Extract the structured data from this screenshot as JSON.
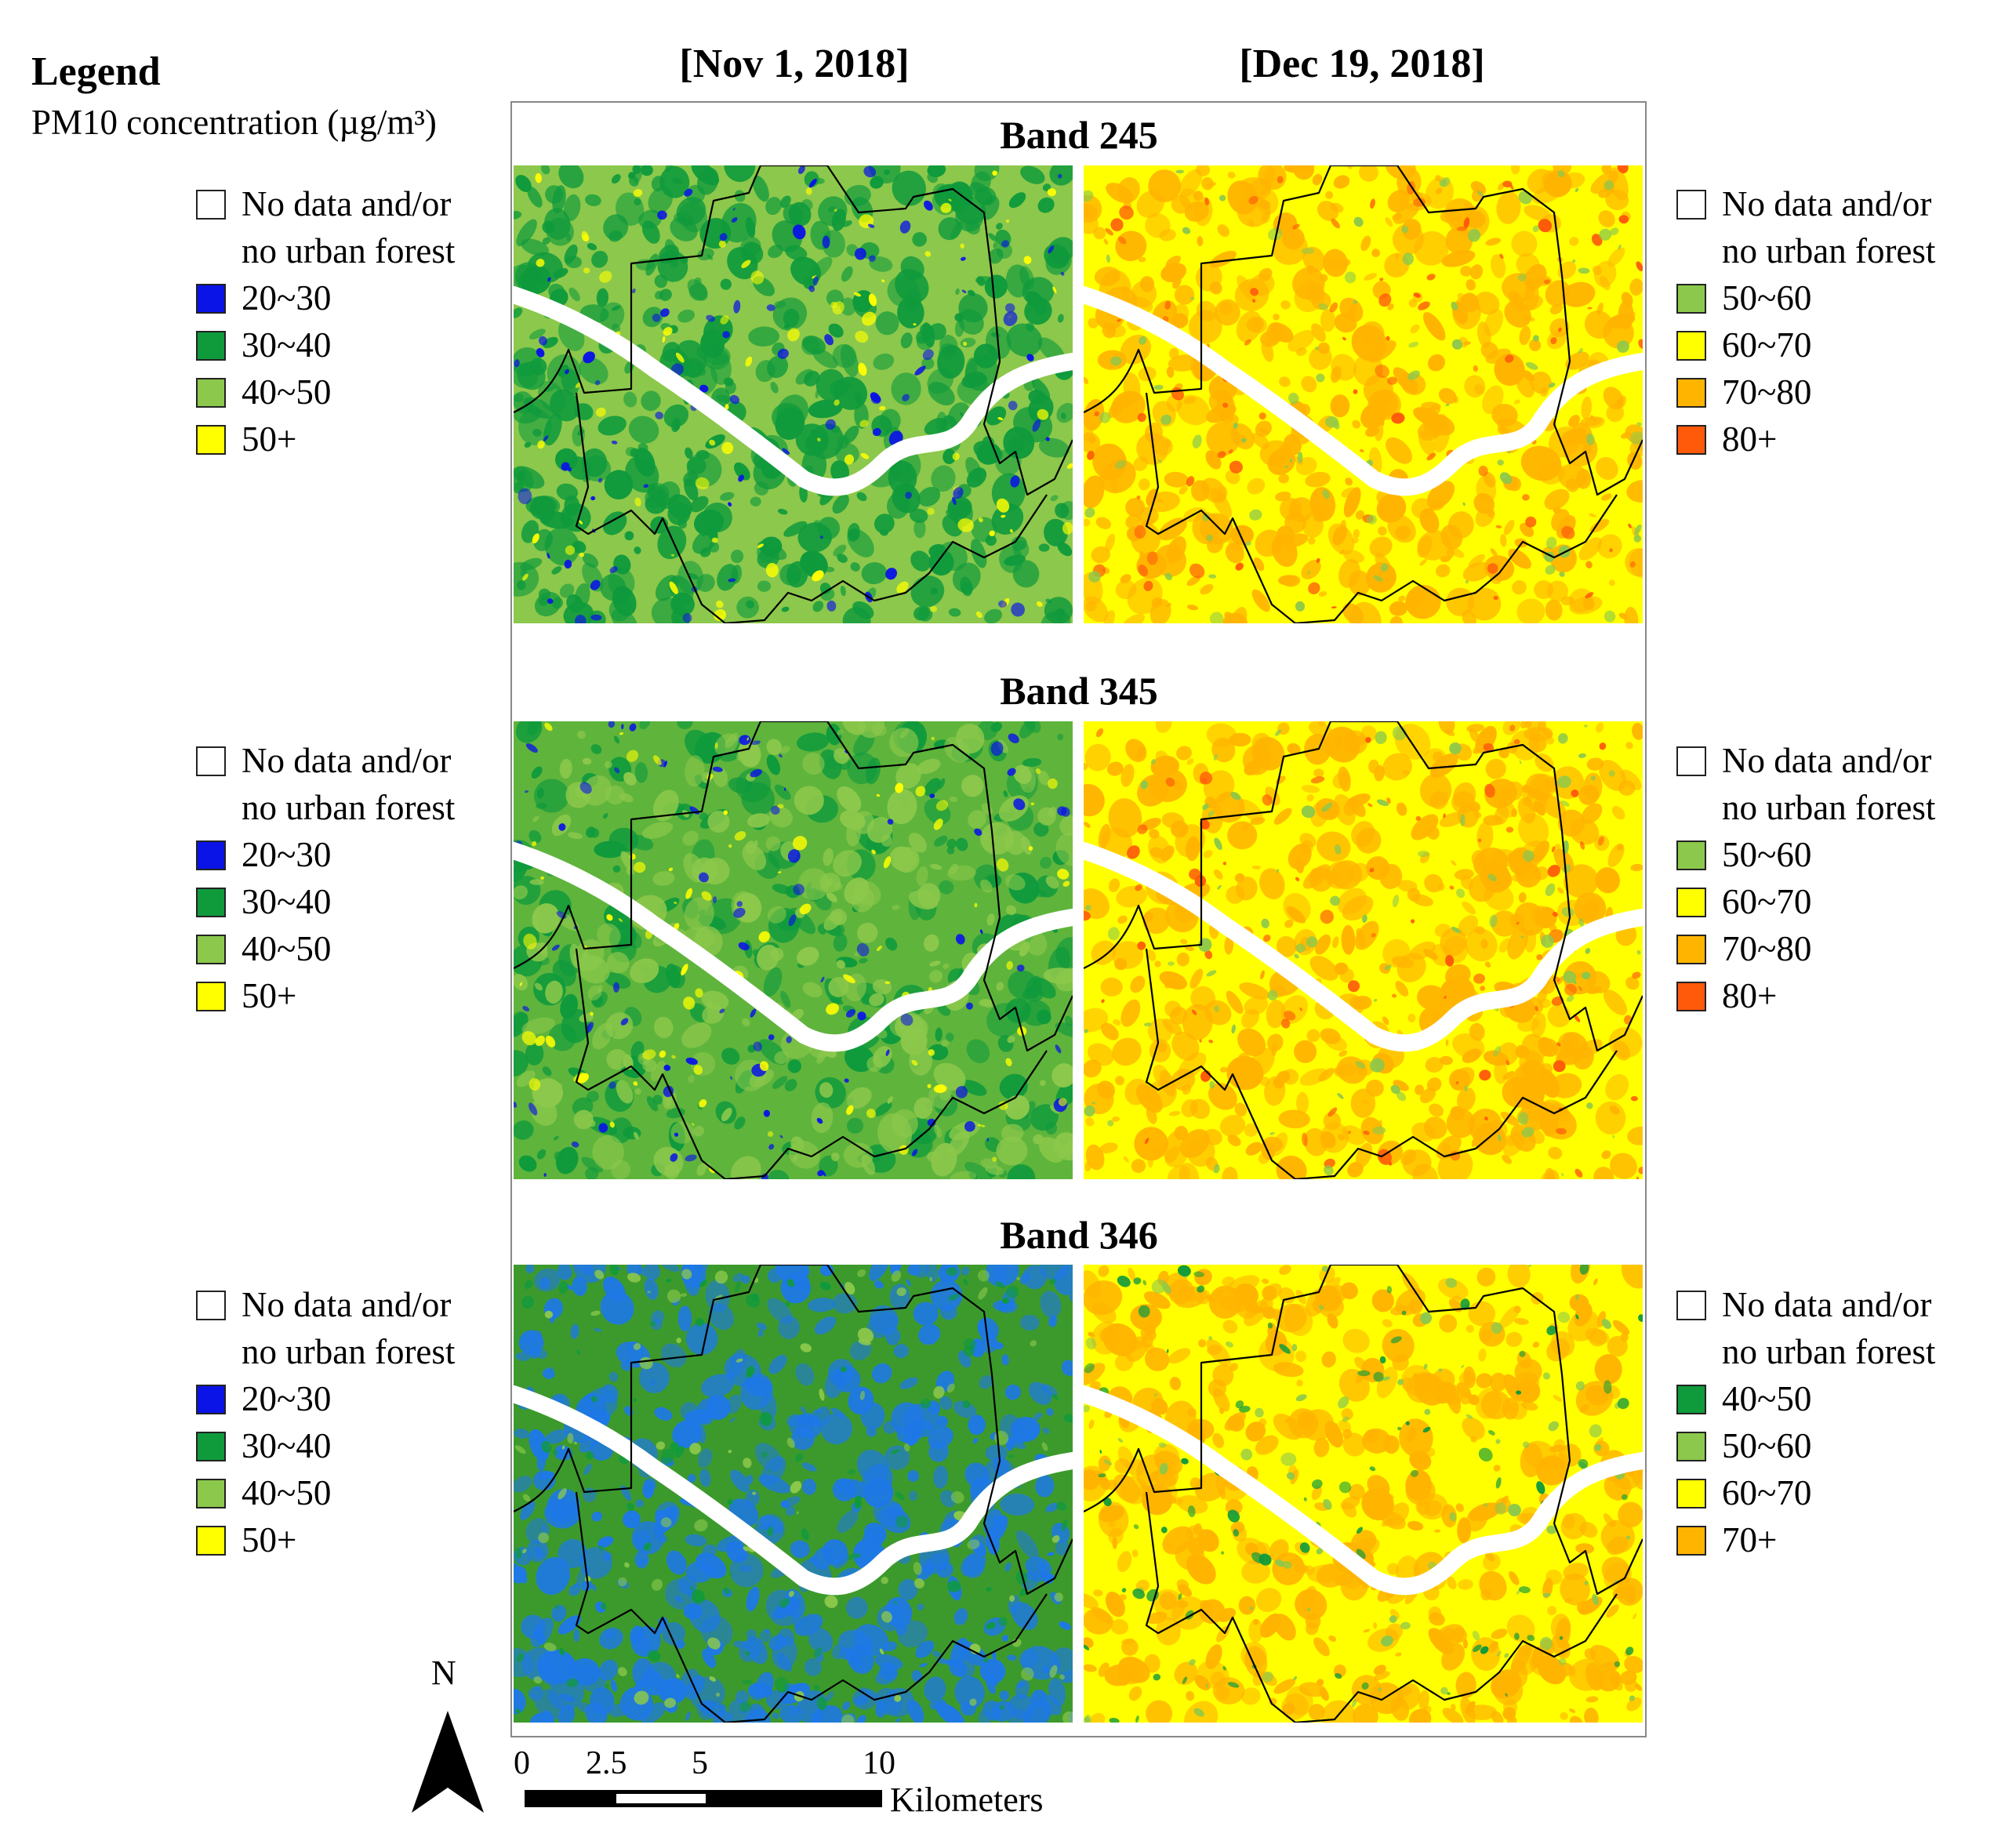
{
  "legend": {
    "title": "Legend",
    "subtitle": "PM10 concentration (µg/m³)"
  },
  "dates": {
    "left": "[Nov 1, 2018]",
    "right": "[Dec 19, 2018]"
  },
  "colors": {
    "none": "#ffffff",
    "blue": "#0a14e6",
    "dgreen": "#0f9a3c",
    "lgreen": "#8cc84b",
    "yellow": "#ffff00",
    "orange": "#ffb400",
    "red": "#ff5a0a",
    "river": "#ffffff",
    "boundary": "#000000"
  },
  "rows": [
    {
      "band": "Band 245",
      "left_legend": [
        {
          "label": "No data and/or",
          "label2": "no urban forest",
          "color": "#ffffff"
        },
        {
          "label": "20~30",
          "color": "#0a14e6"
        },
        {
          "label": "30~40",
          "color": "#0f9a3c"
        },
        {
          "label": "40~50",
          "color": "#8cc84b"
        },
        {
          "label": "50+",
          "color": "#ffff00"
        }
      ],
      "right_legend": [
        {
          "label": "No data and/or",
          "label2": "no urban forest",
          "color": "#ffffff"
        },
        {
          "label": "50~60",
          "color": "#8cc84b"
        },
        {
          "label": "60~70",
          "color": "#ffff00"
        },
        {
          "label": "70~80",
          "color": "#ffb400"
        },
        {
          "label": "80+",
          "color": "#ff5a0a"
        }
      ],
      "left_map": {
        "base": "#8cc84b",
        "patches": [
          "#0f9a3c",
          "#0f9a3c",
          "#ffff00",
          "#0a14e6"
        ]
      },
      "right_map": {
        "base": "#ffff00",
        "patches": [
          "#ffb400",
          "#ffb400",
          "#ff5a0a",
          "#8cc84b"
        ]
      }
    },
    {
      "band": "Band 345",
      "left_legend": [
        {
          "label": "No data and/or",
          "label2": "no urban forest",
          "color": "#ffffff"
        },
        {
          "label": "20~30",
          "color": "#0a14e6"
        },
        {
          "label": "30~40",
          "color": "#0f9a3c"
        },
        {
          "label": "40~50",
          "color": "#8cc84b"
        },
        {
          "label": "50+",
          "color": "#ffff00"
        }
      ],
      "right_legend": [
        {
          "label": "No data and/or",
          "label2": "no urban forest",
          "color": "#ffffff"
        },
        {
          "label": "50~60",
          "color": "#8cc84b"
        },
        {
          "label": "60~70",
          "color": "#ffff00"
        },
        {
          "label": "70~80",
          "color": "#ffb400"
        },
        {
          "label": "80+",
          "color": "#ff5a0a"
        }
      ],
      "left_map": {
        "base": "#5fb43c",
        "patches": [
          "#0f9a3c",
          "#8cc84b",
          "#0a14e6",
          "#ffff00"
        ]
      },
      "right_map": {
        "base": "#ffff00",
        "patches": [
          "#ffb400",
          "#ffb400",
          "#ff5a0a",
          "#8cc84b"
        ]
      }
    },
    {
      "band": "Band 346",
      "left_legend": [
        {
          "label": "No data and/or",
          "label2": "no urban forest",
          "color": "#ffffff"
        },
        {
          "label": "20~30",
          "color": "#0a14e6"
        },
        {
          "label": "30~40",
          "color": "#0f9a3c"
        },
        {
          "label": "40~50",
          "color": "#8cc84b"
        },
        {
          "label": "50+",
          "color": "#ffff00"
        }
      ],
      "right_legend": [
        {
          "label": "No data and/or",
          "label2": "no urban forest",
          "color": "#ffffff"
        },
        {
          "label": "40~50",
          "color": "#0f9a3c"
        },
        {
          "label": "50~60",
          "color": "#8cc84b"
        },
        {
          "label": "60~70",
          "color": "#ffff00"
        },
        {
          "label": "70+",
          "color": "#ffb400"
        }
      ],
      "left_map": {
        "base": "#3c9a2d",
        "patches": [
          "#1e78e6",
          "#1e78e6",
          "#8cc84b",
          "#0f9a3c"
        ]
      },
      "right_map": {
        "base": "#ffff00",
        "patches": [
          "#ffb400",
          "#ffb400",
          "#8cc84b",
          "#0f9a3c"
        ]
      }
    }
  ],
  "north": {
    "label": "N"
  },
  "scale": {
    "ticks": [
      "0",
      "2.5",
      "5",
      "10"
    ],
    "unit": "Kilometers"
  }
}
